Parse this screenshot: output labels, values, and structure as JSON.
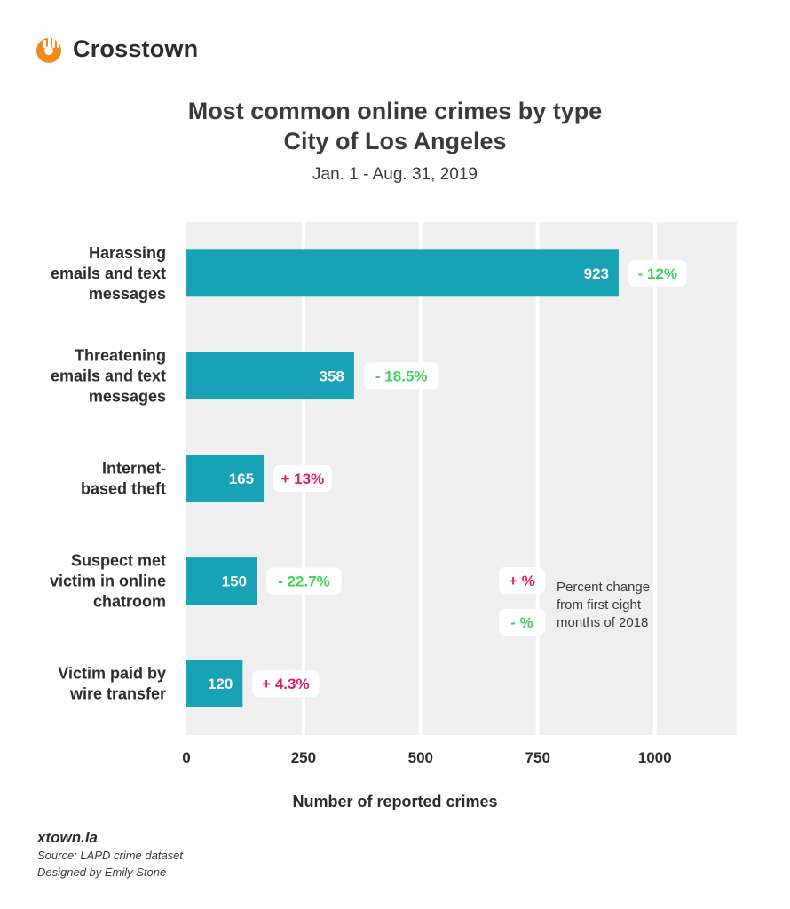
{
  "brand": {
    "name": "Crosstown",
    "logo_icon": "crosstown-logo-icon",
    "color": "#f08a1c"
  },
  "header": {
    "title_line1": "Most common online crimes by type",
    "title_line2": "City of Los Angeles",
    "subtitle": "Jan. 1 - Aug. 31, 2019"
  },
  "colors": {
    "bar": "#18a2b5",
    "plot_bg": "#efefef",
    "gridline": "#ffffff",
    "increase": "#e8196a",
    "decrease": "#3dd35a",
    "text": "#3a3a3a"
  },
  "chart_data": {
    "type": "bar",
    "orientation": "horizontal",
    "categories": [
      [
        "Harassing",
        "emails and text",
        "messages"
      ],
      [
        "Threatening",
        "emails and text",
        "messages"
      ],
      [
        "Internet-",
        "based theft"
      ],
      [
        "Suspect met",
        "victim in online",
        "chatroom"
      ],
      [
        "Victim paid by",
        "wire transfer"
      ]
    ],
    "values": [
      923,
      358,
      165,
      150,
      120
    ],
    "value_labels": [
      "923",
      "358",
      "165",
      "150",
      "120"
    ],
    "change_labels": [
      "- 12%",
      "- 18.5%",
      "+ 13%",
      "- 22.7%",
      "+ 4.3%"
    ],
    "change_direction": [
      "decrease",
      "decrease",
      "increase",
      "decrease",
      "increase"
    ],
    "xlabel": "Number of reported crimes",
    "ylabel": "",
    "xlim": [
      0,
      1175
    ],
    "xticks": [
      0,
      250,
      500,
      750,
      1000
    ],
    "xtick_labels": [
      "0",
      "250",
      "500",
      "750",
      "1000"
    ],
    "grid": true,
    "legend": {
      "placement": "bottom-right",
      "items": [
        {
          "label": "+ %",
          "direction": "increase"
        },
        {
          "label": "- %",
          "direction": "decrease"
        }
      ],
      "description": [
        "Percent change",
        "from first eight",
        "months of 2018"
      ]
    }
  },
  "footer": {
    "site": "xtown.la",
    "source": "Source: LAPD crime dataset",
    "designer": "Designed by Emily Stone"
  }
}
